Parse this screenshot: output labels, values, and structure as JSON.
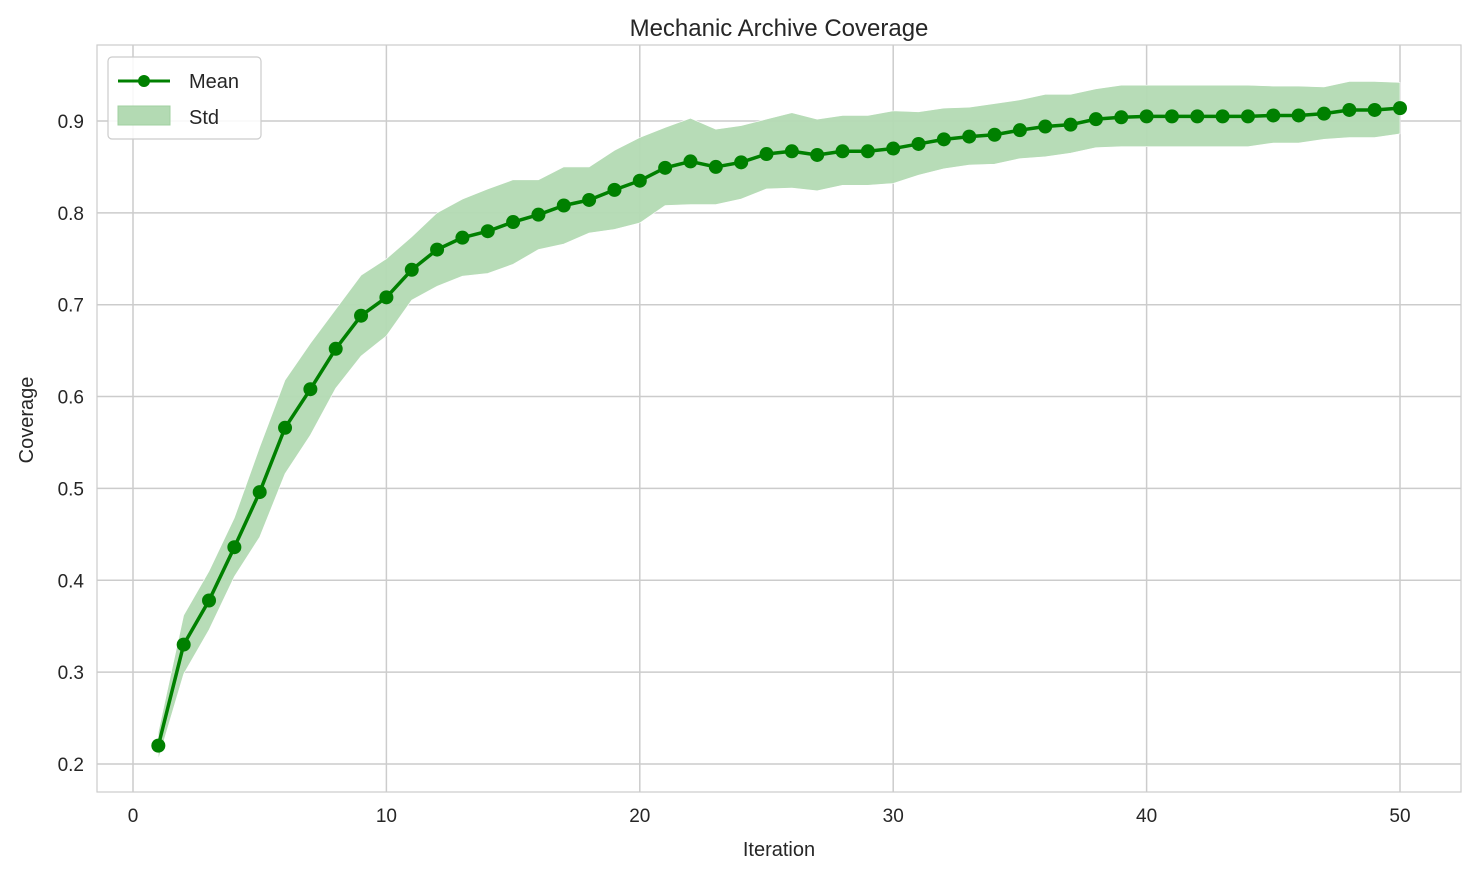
{
  "chart_data": {
    "type": "line",
    "title": "Mechanic Archive Coverage",
    "xlabel": "Iteration",
    "ylabel": "Coverage",
    "xlim": [
      -1.4,
      52.4
    ],
    "ylim": [
      0.17,
      0.983
    ],
    "xticks": [
      0,
      10,
      20,
      30,
      40,
      50
    ],
    "yticks": [
      0.2,
      0.3,
      0.4,
      0.5,
      0.6,
      0.7,
      0.8,
      0.9
    ],
    "grid": true,
    "legend_position": "upper left",
    "colors": {
      "mean": "#008000",
      "std_fill": "#b3dab3"
    },
    "x": [
      1,
      2,
      3,
      4,
      5,
      6,
      7,
      8,
      9,
      10,
      11,
      12,
      13,
      14,
      15,
      16,
      17,
      18,
      19,
      20,
      21,
      22,
      23,
      24,
      25,
      26,
      27,
      28,
      29,
      30,
      31,
      32,
      33,
      34,
      35,
      36,
      37,
      38,
      39,
      40,
      41,
      42,
      43,
      44,
      45,
      46,
      47,
      48,
      49,
      50
    ],
    "series": [
      {
        "name": "Mean",
        "values": [
          0.22,
          0.33,
          0.378,
          0.436,
          0.496,
          0.566,
          0.608,
          0.652,
          0.688,
          0.708,
          0.738,
          0.76,
          0.773,
          0.78,
          0.79,
          0.798,
          0.808,
          0.814,
          0.825,
          0.835,
          0.849,
          0.856,
          0.85,
          0.855,
          0.864,
          0.867,
          0.863,
          0.867,
          0.867,
          0.87,
          0.875,
          0.88,
          0.883,
          0.885,
          0.89,
          0.894,
          0.896,
          0.902,
          0.904,
          0.905,
          0.905,
          0.905,
          0.905,
          0.905,
          0.906,
          0.906,
          0.908,
          0.912,
          0.912,
          0.914
        ]
      },
      {
        "name": "Std",
        "upper": [
          0.235,
          0.362,
          0.41,
          0.468,
          0.545,
          0.618,
          0.658,
          0.695,
          0.732,
          0.75,
          0.774,
          0.8,
          0.815,
          0.826,
          0.836,
          0.836,
          0.85,
          0.85,
          0.868,
          0.882,
          0.893,
          0.903,
          0.891,
          0.895,
          0.902,
          0.909,
          0.902,
          0.906,
          0.906,
          0.911,
          0.91,
          0.914,
          0.915,
          0.919,
          0.923,
          0.929,
          0.929,
          0.935,
          0.939,
          0.939,
          0.939,
          0.939,
          0.939,
          0.939,
          0.938,
          0.938,
          0.937,
          0.943,
          0.943,
          0.942
        ],
        "lower": [
          0.205,
          0.298,
          0.346,
          0.404,
          0.447,
          0.516,
          0.558,
          0.609,
          0.644,
          0.666,
          0.705,
          0.72,
          0.731,
          0.734,
          0.744,
          0.76,
          0.766,
          0.778,
          0.782,
          0.789,
          0.808,
          0.809,
          0.809,
          0.815,
          0.826,
          0.827,
          0.824,
          0.83,
          0.83,
          0.832,
          0.841,
          0.848,
          0.852,
          0.853,
          0.859,
          0.861,
          0.865,
          0.871,
          0.872,
          0.872,
          0.872,
          0.872,
          0.872,
          0.872,
          0.876,
          0.876,
          0.88,
          0.882,
          0.882,
          0.886
        ]
      }
    ]
  },
  "legend": {
    "mean_label": "Mean",
    "std_label": "Std"
  }
}
